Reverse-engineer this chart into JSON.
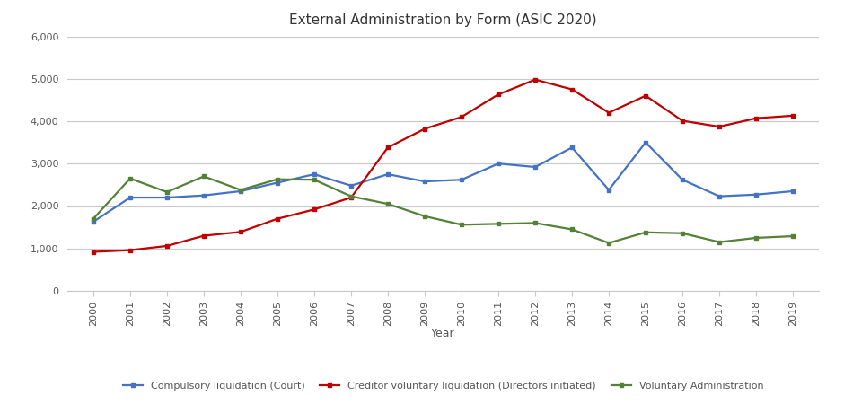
{
  "title": "External Administration by Form (ASIC 2020)",
  "xlabel": "Year",
  "ylabel": "",
  "years": [
    2000,
    2001,
    2002,
    2003,
    2004,
    2005,
    2006,
    2007,
    2008,
    2009,
    2010,
    2011,
    2012,
    2013,
    2014,
    2015,
    2016,
    2017,
    2018,
    2019
  ],
  "compulsory_liquidation": [
    1630,
    2200,
    2200,
    2250,
    2350,
    2550,
    2750,
    2480,
    2750,
    2580,
    2620,
    3000,
    2920,
    3380,
    2380,
    3500,
    2620,
    2230,
    2270,
    2350
  ],
  "creditor_voluntary": [
    920,
    960,
    1060,
    1300,
    1390,
    1700,
    1920,
    2200,
    3380,
    3820,
    4100,
    4630,
    4980,
    4750,
    4200,
    4600,
    4010,
    3870,
    4070,
    4130
  ],
  "voluntary_admin": [
    1700,
    2650,
    2330,
    2700,
    2380,
    2630,
    2620,
    2230,
    2050,
    1760,
    1560,
    1580,
    1600,
    1450,
    1130,
    1380,
    1360,
    1150,
    1250,
    1290
  ],
  "compulsory_color": "#4472C4",
  "creditor_color": "#C00000",
  "voluntary_color": "#538135",
  "ylim": [
    0,
    6000
  ],
  "yticks": [
    0,
    1000,
    2000,
    3000,
    4000,
    5000,
    6000
  ],
  "legend_labels": [
    "Compulsory liquidation (Court)",
    "Creditor voluntary liquidation (Directors initiated)",
    "Voluntary Administration"
  ],
  "background_color": "#ffffff",
  "grid_color": "#c8c8c8",
  "title_fontsize": 11,
  "axis_fontsize": 9,
  "tick_fontsize": 8,
  "legend_fontsize": 8,
  "line_width": 1.6,
  "marker_size": 4
}
